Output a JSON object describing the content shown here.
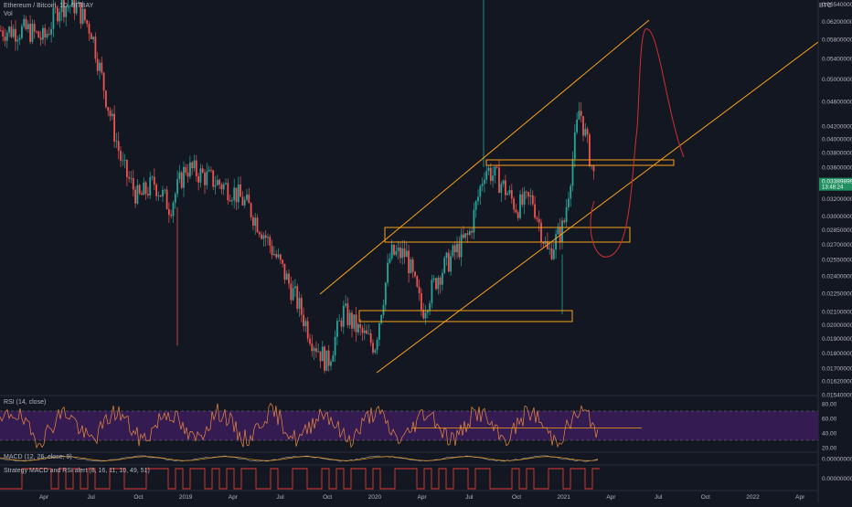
{
  "header": {
    "symbol_line": "Ethereum / Bitcoin, 1D, BITBAY",
    "volume_label": "Vol",
    "currency": "BTC"
  },
  "colors": {
    "background": "#131722",
    "up_candle": "#26a69a",
    "down_candle": "#ef5350",
    "channel": "#f7a21b",
    "projection": "#d32f2f",
    "rsi_line": "#f08a3c",
    "rsi_band": "#3b1d5a",
    "macd_line": "#9e9e9e",
    "signal_line": "#f7a21b",
    "strategy_line": "#e53935",
    "price_tag": "#1f8f5f"
  },
  "price_axis": {
    "ticks": [
      "0.06200000",
      "0.05800000",
      "0.05400000",
      "0.05000000",
      "0.04600000",
      "0.04200000",
      "0.04000000",
      "0.03800000",
      "0.03600000",
      "0.03200000",
      "0.03000000",
      "0.02850000",
      "0.02700000",
      "0.02550000",
      "0.02400000",
      "0.02250000",
      "0.02100000",
      "0.02000000",
      "0.01900000",
      "0.01800000",
      "0.01700000",
      "0.01620000",
      "0.01540000"
    ],
    "top_partial": "0.06540000",
    "current_price": "0.03389899",
    "countdown": "13:48:24"
  },
  "time_axis": {
    "labels": [
      "Apr",
      "Jul",
      "Oct",
      "2019",
      "Apr",
      "Jul",
      "Oct",
      "2020",
      "Apr",
      "Jul",
      "Oct",
      "2021",
      "Apr",
      "Jul",
      "Oct",
      "2022",
      "Apr"
    ]
  },
  "rsi_pane": {
    "title": "RSI (14, close)",
    "ticks": [
      "80.00",
      "60.00",
      "40.00",
      "20.00"
    ]
  },
  "macd_pane": {
    "title": "MACD (12, 26, close, 9)",
    "ticks": [
      "0.00000000"
    ]
  },
  "strategy_pane": {
    "title": "Strategy MACD and RSI alert (8, 16, 11, 10, 49, 51)",
    "ticks": [
      "0.00000000"
    ]
  },
  "chart_data": {
    "type": "line",
    "title": "Ethereum / Bitcoin, 1D, BITBAY",
    "x": [
      "2018-03",
      "2018-04",
      "2018-05",
      "2018-06",
      "2018-07",
      "2018-08",
      "2018-09",
      "2018-10",
      "2018-11",
      "2018-12",
      "2019-01",
      "2019-02",
      "2019-03",
      "2019-04",
      "2019-05",
      "2019-06",
      "2019-07",
      "2019-08",
      "2019-09",
      "2019-10",
      "2019-11",
      "2019-12",
      "2020-01",
      "2020-02",
      "2020-03",
      "2020-04",
      "2020-05",
      "2020-06",
      "2020-07",
      "2020-08",
      "2020-09",
      "2020-10",
      "2020-11",
      "2020-12",
      "2021-01",
      "2021-02",
      "2021-03"
    ],
    "series": [
      {
        "name": "ETH/BTC",
        "values": [
          0.06,
          0.058,
          0.066,
          0.066,
          0.06,
          0.046,
          0.036,
          0.032,
          0.034,
          0.031,
          0.036,
          0.035,
          0.034,
          0.033,
          0.031,
          0.028,
          0.025,
          0.022,
          0.019,
          0.0173,
          0.021,
          0.0195,
          0.0185,
          0.026,
          0.026,
          0.021,
          0.024,
          0.026,
          0.028,
          0.036,
          0.034,
          0.031,
          0.032,
          0.026,
          0.029,
          0.045,
          0.0339
        ]
      }
    ],
    "ylim": [
      0.0154,
      0.0654
    ],
    "yscale": "log",
    "xlabel": "",
    "ylabel": ""
  }
}
